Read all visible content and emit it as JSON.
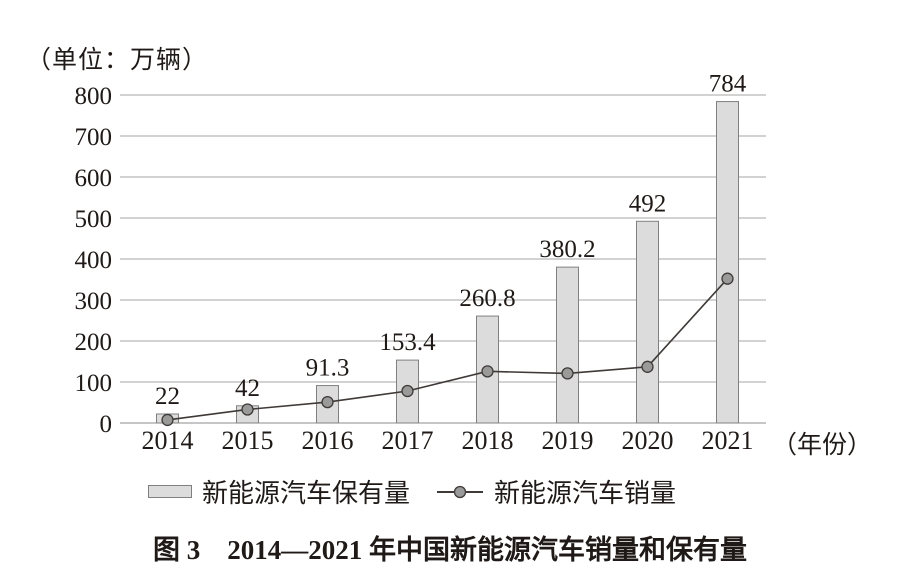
{
  "unit_label": "（单位：万辆）",
  "axis_suffix": "（年份）",
  "legend": {
    "bar_label": "新能源汽车保有量",
    "line_label": "新能源汽车销量"
  },
  "caption": "图 3　2014—2021 年中国新能源汽车销量和保有量",
  "colors": {
    "background": "#ffffff",
    "text": "#1f1a17",
    "grid": "#a6a6a6",
    "axis": "#8c8c8c",
    "bar_fill": "#dcdcdc",
    "bar_border": "#808080",
    "line": "#3f3a38",
    "marker_fill": "#9a9a9a",
    "marker_stroke": "#3f3a38"
  },
  "chart_data": {
    "type": "bar",
    "title": "图 3　2014—2021 年中国新能源汽车销量和保有量",
    "categories": [
      "2014",
      "2015",
      "2016",
      "2017",
      "2018",
      "2019",
      "2020",
      "2021"
    ],
    "series": [
      {
        "name": "新能源汽车保有量",
        "type": "bar",
        "values": [
          22,
          42,
          91.3,
          153.4,
          260.8,
          380.2,
          492,
          784
        ],
        "labels": [
          "22",
          "42",
          "91.3",
          "153.4",
          "260.8",
          "380.2",
          "492",
          "784"
        ]
      },
      {
        "name": "新能源汽车销量",
        "type": "line",
        "values": [
          7.5,
          33,
          51,
          78,
          126,
          121,
          137,
          352
        ]
      }
    ],
    "xlabel": "（年份）",
    "ylabel": "万辆",
    "ylim": [
      0,
      800
    ],
    "yticks": [
      0,
      100,
      200,
      300,
      400,
      500,
      600,
      700,
      800
    ],
    "grid": true,
    "legend_position": "bottom"
  }
}
